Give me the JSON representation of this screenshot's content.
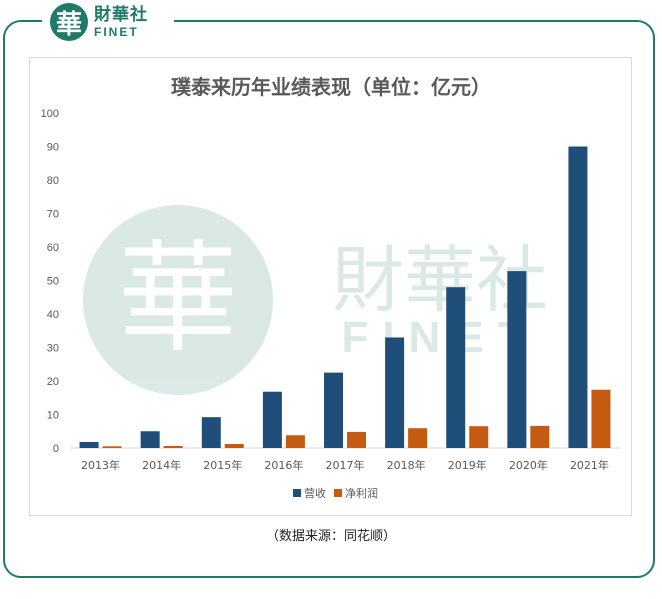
{
  "brand": {
    "logo_char": "華",
    "name_cn": "財華社",
    "name_en": "FINET",
    "color": "#1f7a68"
  },
  "chart_data": {
    "type": "bar",
    "title": "璞泰来历年业绩表现（单位：亿元）",
    "categories": [
      "2013年",
      "2014年",
      "2015年",
      "2016年",
      "2017年",
      "2018年",
      "2019年",
      "2020年",
      "2021年"
    ],
    "series": [
      {
        "name": "营收",
        "color": "#1f4e79",
        "values": [
          1.8,
          5.0,
          9.2,
          16.8,
          22.5,
          33.0,
          48.0,
          52.8,
          90.0
        ]
      },
      {
        "name": "净利润",
        "color": "#c55a11",
        "values": [
          0.5,
          0.6,
          1.2,
          3.8,
          4.8,
          5.9,
          6.5,
          6.6,
          17.4
        ]
      }
    ],
    "ylim": [
      0,
      100
    ],
    "yticks": [
      0,
      10,
      20,
      30,
      40,
      50,
      60,
      70,
      80,
      90,
      100
    ],
    "grid": false,
    "legend": "bottom"
  },
  "source": "（数据来源：同花顺）"
}
